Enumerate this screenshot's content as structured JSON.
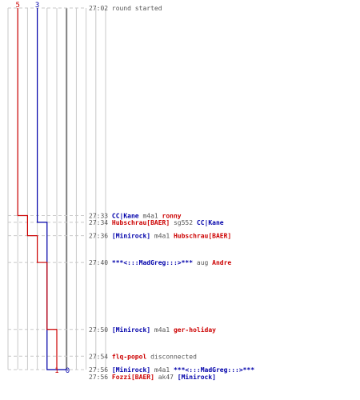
{
  "colors": {
    "blue": "#0000aa",
    "red": "#cc0000",
    "grid": "#c8c8c8",
    "center": "#808080",
    "dash": "#c8c8c8",
    "time": "#555555",
    "text": "#555555"
  },
  "chart_data": {
    "type": "line",
    "title": "",
    "xlabel": "",
    "ylabel": "",
    "score_range": [
      -4,
      6
    ],
    "time_range": [
      "27:02",
      "27:56"
    ],
    "score_labels": {
      "blue_start": "3",
      "red_start": "5",
      "blue_end": "0",
      "red_end": "1"
    },
    "series": [
      {
        "team": "blue",
        "points": [
          {
            "t": "27:02",
            "score": 3
          },
          {
            "t": "27:34",
            "score": 3
          },
          {
            "t": "27:34",
            "score": 2
          },
          {
            "t": "27:56",
            "score": 2
          },
          {
            "t": "27:56",
            "score": 0
          }
        ]
      },
      {
        "team": "red",
        "points": [
          {
            "t": "27:02",
            "score": 5
          },
          {
            "t": "27:33",
            "score": 5
          },
          {
            "t": "27:33",
            "score": 4
          },
          {
            "t": "27:36",
            "score": 4
          },
          {
            "t": "27:36",
            "score": 3
          },
          {
            "t": "27:40",
            "score": 3
          },
          {
            "t": "27:40",
            "score": 2
          },
          {
            "t": "27:50",
            "score": 2
          },
          {
            "t": "27:50",
            "score": 1
          },
          {
            "t": "27:56",
            "score": 1
          }
        ]
      }
    ],
    "events": [
      {
        "time": "27:02",
        "parts": [
          {
            "text": "round started",
            "team": "info"
          }
        ]
      },
      {
        "time": "27:33",
        "parts": [
          {
            "text": "CC|Kane",
            "team": "blue"
          },
          {
            "text": " m4a1 ",
            "team": "weapon"
          },
          {
            "text": "ronny",
            "team": "red"
          }
        ]
      },
      {
        "time": "27:34",
        "parts": [
          {
            "text": "Hubschrau[BAER]",
            "team": "red"
          },
          {
            "text": " sg552 ",
            "team": "weapon"
          },
          {
            "text": "CC|Kane",
            "team": "blue"
          }
        ]
      },
      {
        "time": "27:36",
        "parts": [
          {
            "text": "[Minirock]",
            "team": "blue"
          },
          {
            "text": " m4a1 ",
            "team": "weapon"
          },
          {
            "text": "Hubschrau[BAER]",
            "team": "red"
          }
        ]
      },
      {
        "time": "27:40",
        "parts": [
          {
            "text": "***<:::MadGreg:::>***",
            "team": "blue"
          },
          {
            "text": " aug ",
            "team": "weapon"
          },
          {
            "text": "Andre",
            "team": "red"
          }
        ]
      },
      {
        "time": "27:50",
        "parts": [
          {
            "text": "[Minirock]",
            "team": "blue"
          },
          {
            "text": " m4a1 ",
            "team": "weapon"
          },
          {
            "text": "ger-holiday",
            "team": "red"
          }
        ]
      },
      {
        "time": "27:54",
        "parts": [
          {
            "text": "flq-popol",
            "team": "red"
          },
          {
            "text": " disconnected",
            "team": "info"
          }
        ]
      },
      {
        "time": "27:56",
        "parts": [
          {
            "text": "[Minirock]",
            "team": "blue"
          },
          {
            "text": " m4a1 ",
            "team": "weapon"
          },
          {
            "text": "***<:::MadGreg:::>***",
            "team": "blue"
          }
        ]
      },
      {
        "time": "27:56",
        "parts": [
          {
            "text": "Fozzi[BAER]",
            "team": "red"
          },
          {
            "text": " ak47 ",
            "team": "weapon"
          },
          {
            "text": "[Minirock]",
            "team": "blue"
          }
        ]
      }
    ]
  }
}
